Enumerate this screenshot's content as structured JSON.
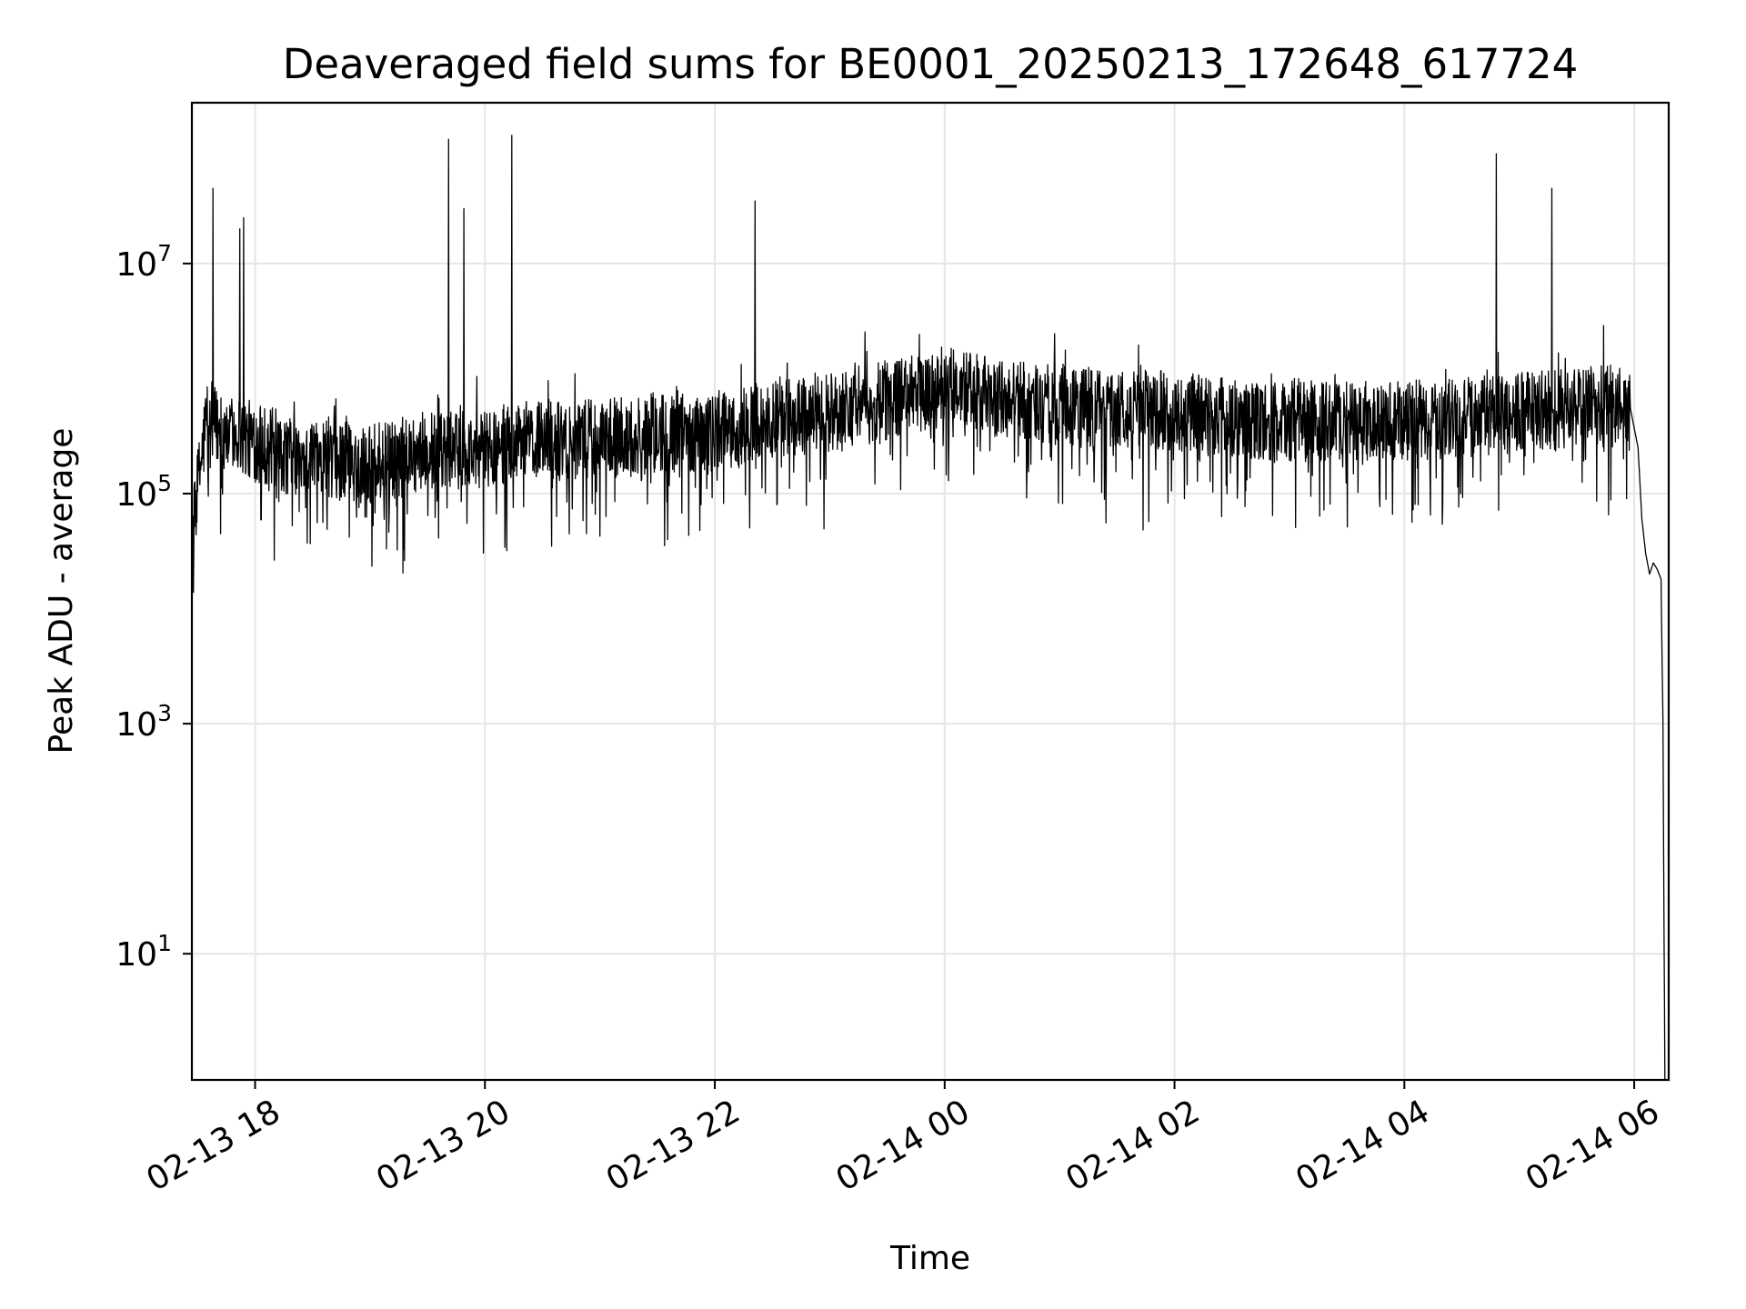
{
  "chart_data": {
    "type": "line",
    "title": "Deaveraged field sums for BE0001_20250213_172648_617724",
    "xlabel": "Time",
    "ylabel": "Peak ADU - average",
    "yscale": "log",
    "ylim": [
      0.8,
      250000000
    ],
    "xlim": [
      "2025-02-13 17:27",
      "2025-02-14 06:18"
    ],
    "grid": true,
    "legend": "none",
    "line_color": "#000000",
    "x_ticks": [
      {
        "value": "2025-02-13 18:00",
        "label": "02-13 18"
      },
      {
        "value": "2025-02-13 20:00",
        "label": "02-13 20"
      },
      {
        "value": "2025-02-13 22:00",
        "label": "02-13 22"
      },
      {
        "value": "2025-02-14 00:00",
        "label": "02-14 00"
      },
      {
        "value": "2025-02-14 02:00",
        "label": "02-14 02"
      },
      {
        "value": "2025-02-14 04:00",
        "label": "02-14 04"
      },
      {
        "value": "2025-02-14 06:00",
        "label": "02-14 06"
      }
    ],
    "y_ticks": [
      {
        "value": 10,
        "base": "10",
        "exp": "1"
      },
      {
        "value": 1000,
        "base": "10",
        "exp": "3"
      },
      {
        "value": 100000,
        "base": "10",
        "exp": "5"
      },
      {
        "value": 10000000,
        "base": "10",
        "exp": "7"
      }
    ],
    "series": [
      {
        "x": [
          "2025-02-13 17:27",
          "2025-02-13 17:29",
          "2025-02-13 17:32",
          "2025-02-13 17:35",
          "2025-02-13 17:38",
          "2025-02-13 17:42",
          "2025-02-13 17:46",
          "2025-02-13 17:50",
          "2025-02-13 17:55",
          "2025-02-13 18:00",
          "2025-02-13 18:10",
          "2025-02-13 18:20",
          "2025-02-13 18:30",
          "2025-02-13 18:45",
          "2025-02-13 19:00",
          "2025-02-13 19:15",
          "2025-02-13 19:30",
          "2025-02-13 19:45",
          "2025-02-13 20:00",
          "2025-02-13 20:15",
          "2025-02-13 20:30",
          "2025-02-13 20:45",
          "2025-02-13 21:00",
          "2025-02-13 21:15",
          "2025-02-13 21:30",
          "2025-02-13 21:45",
          "2025-02-13 22:00",
          "2025-02-13 22:15",
          "2025-02-13 22:30",
          "2025-02-13 22:45",
          "2025-02-13 23:00",
          "2025-02-13 23:15",
          "2025-02-13 23:30",
          "2025-02-13 23:45",
          "2025-02-14 00:00",
          "2025-02-14 00:15",
          "2025-02-14 00:30",
          "2025-02-14 01:00",
          "2025-02-14 01:30",
          "2025-02-14 02:00",
          "2025-02-14 02:30",
          "2025-02-14 03:00",
          "2025-02-14 03:30",
          "2025-02-14 04:00",
          "2025-02-14 04:30",
          "2025-02-14 05:00",
          "2025-02-14 05:30",
          "2025-02-14 05:50",
          "2025-02-14 05:58",
          "2025-02-14 06:02",
          "2025-02-14 06:04",
          "2025-02-14 06:06",
          "2025-02-14 06:08",
          "2025-02-14 06:10",
          "2025-02-14 06:12",
          "2025-02-14 06:14",
          "2025-02-14 06:15",
          "2025-02-14 06:16"
        ],
        "y": [
          30000,
          80000,
          200000,
          500000,
          400000,
          350000,
          300000,
          350000,
          300000,
          280000,
          250000,
          200000,
          220000,
          200000,
          180000,
          200000,
          250000,
          220000,
          250000,
          280000,
          300000,
          280000,
          320000,
          300000,
          350000,
          330000,
          350000,
          380000,
          450000,
          500000,
          520000,
          600000,
          650000,
          750000,
          850000,
          750000,
          650000,
          600000,
          550000,
          520000,
          450000,
          430000,
          420000,
          430000,
          450000,
          520000,
          550000,
          600000,
          550000,
          250000,
          60000,
          30000,
          20000,
          25000,
          22000,
          18000,
          1000,
          0.8
        ]
      }
    ],
    "spikes": [
      {
        "x": "2025-02-13 17:38",
        "y": 45000000
      },
      {
        "x": "2025-02-13 17:52",
        "y": 20000000
      },
      {
        "x": "2025-02-13 17:54",
        "y": 25000000
      },
      {
        "x": "2025-02-13 19:41",
        "y": 120000000
      },
      {
        "x": "2025-02-13 19:49",
        "y": 30000000
      },
      {
        "x": "2025-02-13 20:14",
        "y": 130000000
      },
      {
        "x": "2025-02-13 22:21",
        "y": 35000000
      },
      {
        "x": "2025-02-14 04:48",
        "y": 90000000
      },
      {
        "x": "2025-02-14 05:17",
        "y": 45000000
      }
    ]
  }
}
